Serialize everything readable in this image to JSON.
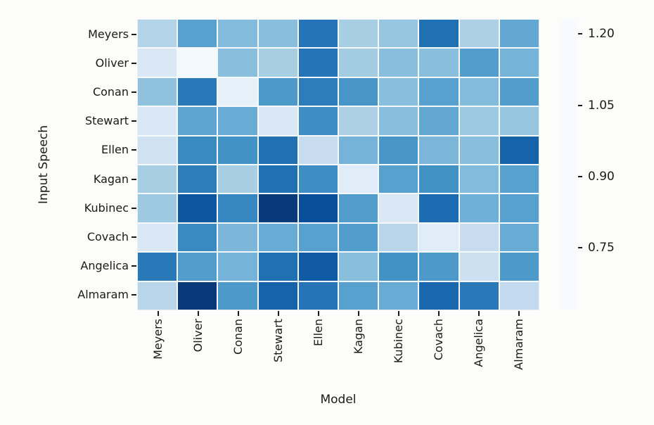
{
  "figure": {
    "background": "#fcfdfa",
    "text_color": "#1a1a1a"
  },
  "chart_data": {
    "type": "heatmap",
    "xlabel": "Model",
    "ylabel": "Input Speech",
    "x_categories": [
      "Meyers",
      "Oliver",
      "Conan",
      "Stewart",
      "Ellen",
      "Kagan",
      "Kubinec",
      "Covach",
      "Angelica",
      "Almaram"
    ],
    "y_categories": [
      "Meyers",
      "Oliver",
      "Conan",
      "Stewart",
      "Ellen",
      "Kagan",
      "Kubinec",
      "Covach",
      "Angelica",
      "Almaram"
    ],
    "values": [
      [
        0.81,
        0.96,
        0.89,
        0.88,
        1.07,
        0.83,
        0.86,
        1.08,
        0.82,
        0.94
      ],
      [
        0.71,
        0.63,
        0.88,
        0.83,
        1.07,
        0.84,
        0.88,
        0.88,
        0.97,
        0.91
      ],
      [
        0.87,
        1.06,
        0.67,
        0.98,
        1.05,
        0.99,
        0.88,
        0.96,
        0.89,
        0.97
      ],
      [
        0.71,
        0.95,
        0.93,
        0.71,
        1.01,
        0.82,
        0.88,
        0.94,
        0.85,
        0.86
      ],
      [
        0.74,
        1.02,
        1.0,
        1.08,
        0.77,
        0.91,
        0.99,
        0.9,
        0.88,
        1.11
      ],
      [
        0.83,
        1.05,
        0.83,
        1.08,
        1.01,
        0.69,
        0.96,
        1.0,
        0.89,
        0.96
      ],
      [
        0.85,
        1.14,
        1.03,
        1.21,
        1.16,
        0.97,
        0.71,
        1.09,
        0.92,
        0.96
      ],
      [
        0.71,
        1.02,
        0.9,
        0.93,
        0.96,
        0.97,
        0.8,
        0.69,
        0.77,
        0.93
      ],
      [
        1.06,
        0.97,
        0.91,
        1.08,
        1.13,
        0.88,
        1.0,
        0.98,
        0.75,
        0.98
      ],
      [
        0.8,
        1.21,
        0.98,
        1.11,
        1.07,
        0.96,
        0.93,
        1.1,
        1.06,
        0.78
      ]
    ],
    "vmin": 0.62,
    "vmax": 1.23,
    "colormap": "Blues",
    "colorbar": {
      "ticks": [
        1.2,
        1.05,
        0.9,
        0.75
      ],
      "tick_labels": [
        "1.20",
        "1.05",
        "0.90",
        "0.75"
      ]
    },
    "legend_position": "right-colorbar",
    "grid": false
  }
}
